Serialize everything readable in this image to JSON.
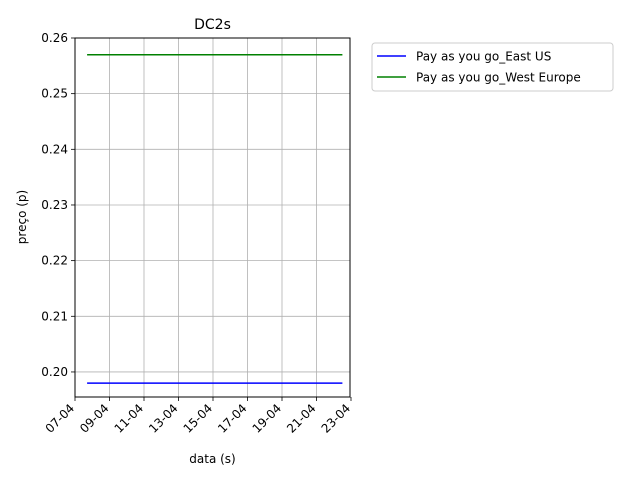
{
  "chart_data": {
    "type": "line",
    "title": "DC2s",
    "xlabel": "data (s)",
    "ylabel": "preço (p)",
    "x_tick_labels": [
      "07-04",
      "09-04",
      "11-04",
      "13-04",
      "15-04",
      "17-04",
      "19-04",
      "21-04",
      "23-04"
    ],
    "y_tick_labels": [
      "0.20",
      "0.21",
      "0.22",
      "0.23",
      "0.24",
      "0.25",
      "0.26"
    ],
    "x_tick_values": [
      0,
      2,
      4,
      6,
      8,
      10,
      12,
      14,
      16
    ],
    "x_tick_unit": "day of April",
    "ylim": [
      0.1955,
      0.26
    ],
    "grid": true,
    "legend_position": "outside-top-right",
    "series": [
      {
        "name": "Pay as you go_East US",
        "color": "#0000ff",
        "x_start": 0.7,
        "x_end": 15.5,
        "values": [
          0.198,
          0.198
        ]
      },
      {
        "name": "Pay as you go_West Europe",
        "color": "#008000",
        "x_start": 0.7,
        "x_end": 15.5,
        "values": [
          0.257,
          0.257
        ]
      }
    ]
  }
}
